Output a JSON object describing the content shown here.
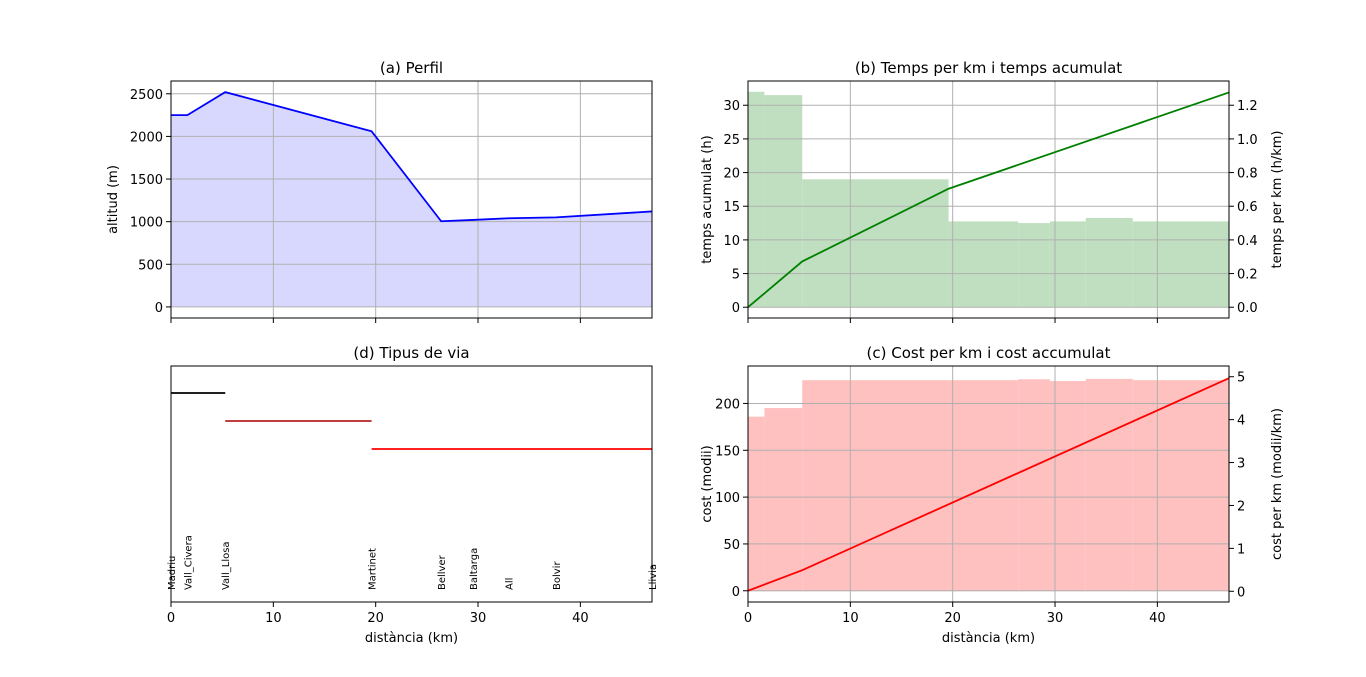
{
  "chart_data": [
    {
      "id": "a",
      "type": "area",
      "title": "(a) Perfil",
      "xlabel": "",
      "ylabel": "altitud (m)",
      "xlim": [
        0,
        47
      ],
      "ylim": [
        -130,
        2650
      ],
      "x_ticks": [
        0,
        10,
        20,
        30,
        40
      ],
      "y_ticks": [
        0,
        500,
        1000,
        1500,
        2000,
        2500
      ],
      "grid": true,
      "colors": {
        "line": "#0000ff",
        "fill": "#d8d8ff"
      },
      "x": [
        0,
        1.6,
        5.3,
        19.6,
        26.4,
        29.5,
        33.0,
        37.6,
        47.0
      ],
      "y": [
        2250,
        2250,
        2520,
        2060,
        1005,
        1020,
        1040,
        1050,
        1120
      ]
    },
    {
      "id": "b",
      "type": "bar+line",
      "title": "(b) Temps per km i temps acumulat",
      "xlabel": "",
      "ylabel": "temps acumulat (h)",
      "ylabel_right": "temps per km (h/km)",
      "xlim": [
        0,
        47
      ],
      "ylim": [
        -1.6,
        33.6
      ],
      "ylim_right": [
        -0.064,
        1.344
      ],
      "x_ticks": [
        0,
        10,
        20,
        30,
        40
      ],
      "y_ticks": [
        "0",
        "5",
        "10",
        "15",
        "20",
        "25",
        "30"
      ],
      "y_ticks_right": [
        "0.0",
        "0.2",
        "0.4",
        "0.6",
        "0.8",
        "1.0",
        "1.2"
      ],
      "grid": true,
      "colors": {
        "line": "#008000",
        "bars": "#c0dfc0"
      },
      "bars": [
        {
          "x0": 0,
          "x1": 1.6,
          "value": 1.28
        },
        {
          "x0": 1.6,
          "x1": 5.3,
          "value": 1.26
        },
        {
          "x0": 5.3,
          "x1": 19.6,
          "value": 0.76
        },
        {
          "x0": 19.6,
          "x1": 26.4,
          "value": 0.51
        },
        {
          "x0": 26.4,
          "x1": 29.5,
          "value": 0.5
        },
        {
          "x0": 29.5,
          "x1": 33.0,
          "value": 0.51
        },
        {
          "x0": 33.0,
          "x1": 37.6,
          "value": 0.53
        },
        {
          "x0": 37.6,
          "x1": 47.0,
          "value": 0.51
        }
      ],
      "line_x": [
        0,
        5.3,
        19.6,
        47.0
      ],
      "line_y": [
        0,
        6.8,
        17.6,
        31.9
      ]
    },
    {
      "id": "d",
      "type": "segments",
      "title": "(d) Tipus de via",
      "xlabel": "distància (km)",
      "ylabel": "",
      "xlim": [
        0,
        47
      ],
      "x_ticks": [
        0,
        10,
        20,
        30,
        40
      ],
      "grid": false,
      "segments": [
        {
          "x0": 0,
          "x1": 5.3,
          "level": 0,
          "color": "#000000"
        },
        {
          "x0": 5.3,
          "x1": 19.6,
          "level": 1,
          "color": "#b22222"
        },
        {
          "x0": 19.6,
          "x1": 47.0,
          "level": 2,
          "color": "#ff0000"
        }
      ],
      "towns": [
        {
          "name": "Madriu",
          "x": 0
        },
        {
          "name": "Vall_Civera",
          "x": 1.6
        },
        {
          "name": "Vall_Llosa",
          "x": 5.3
        },
        {
          "name": "Martinet",
          "x": 19.6
        },
        {
          "name": "Bellver",
          "x": 26.4
        },
        {
          "name": "Baltarga",
          "x": 29.5
        },
        {
          "name": "All",
          "x": 33.0
        },
        {
          "name": "Bolvir",
          "x": 37.6
        },
        {
          "name": "Llivia",
          "x": 47.0
        }
      ]
    },
    {
      "id": "c",
      "type": "bar+line",
      "title": "(c) Cost per km i cost accumulat",
      "xlabel": "distància (km)",
      "ylabel": "cost (modii)",
      "ylabel_right": "cost per km (modii/km)",
      "xlim": [
        0,
        47
      ],
      "ylim": [
        -12,
        240
      ],
      "ylim_right": [
        -0.25,
        5.25
      ],
      "x_ticks": [
        0,
        10,
        20,
        30,
        40
      ],
      "y_ticks": [
        "0",
        "50",
        "100",
        "150",
        "200"
      ],
      "y_ticks_right": [
        "0",
        "1",
        "2",
        "3",
        "4",
        "5"
      ],
      "grid": true,
      "colors": {
        "line": "#ff0000",
        "bars": "#ffc0c0"
      },
      "bars": [
        {
          "x0": 0,
          "x1": 1.6,
          "value": 4.07
        },
        {
          "x0": 1.6,
          "x1": 5.3,
          "value": 4.27
        },
        {
          "x0": 5.3,
          "x1": 19.6,
          "value": 4.92
        },
        {
          "x0": 19.6,
          "x1": 26.4,
          "value": 4.92
        },
        {
          "x0": 26.4,
          "x1": 29.5,
          "value": 4.94
        },
        {
          "x0": 29.5,
          "x1": 33.0,
          "value": 4.9
        },
        {
          "x0": 33.0,
          "x1": 37.6,
          "value": 4.95
        },
        {
          "x0": 37.6,
          "x1": 47.0,
          "value": 4.92
        }
      ],
      "line_x": [
        0,
        5.3,
        47.0
      ],
      "line_y": [
        0,
        22,
        227
      ]
    }
  ]
}
